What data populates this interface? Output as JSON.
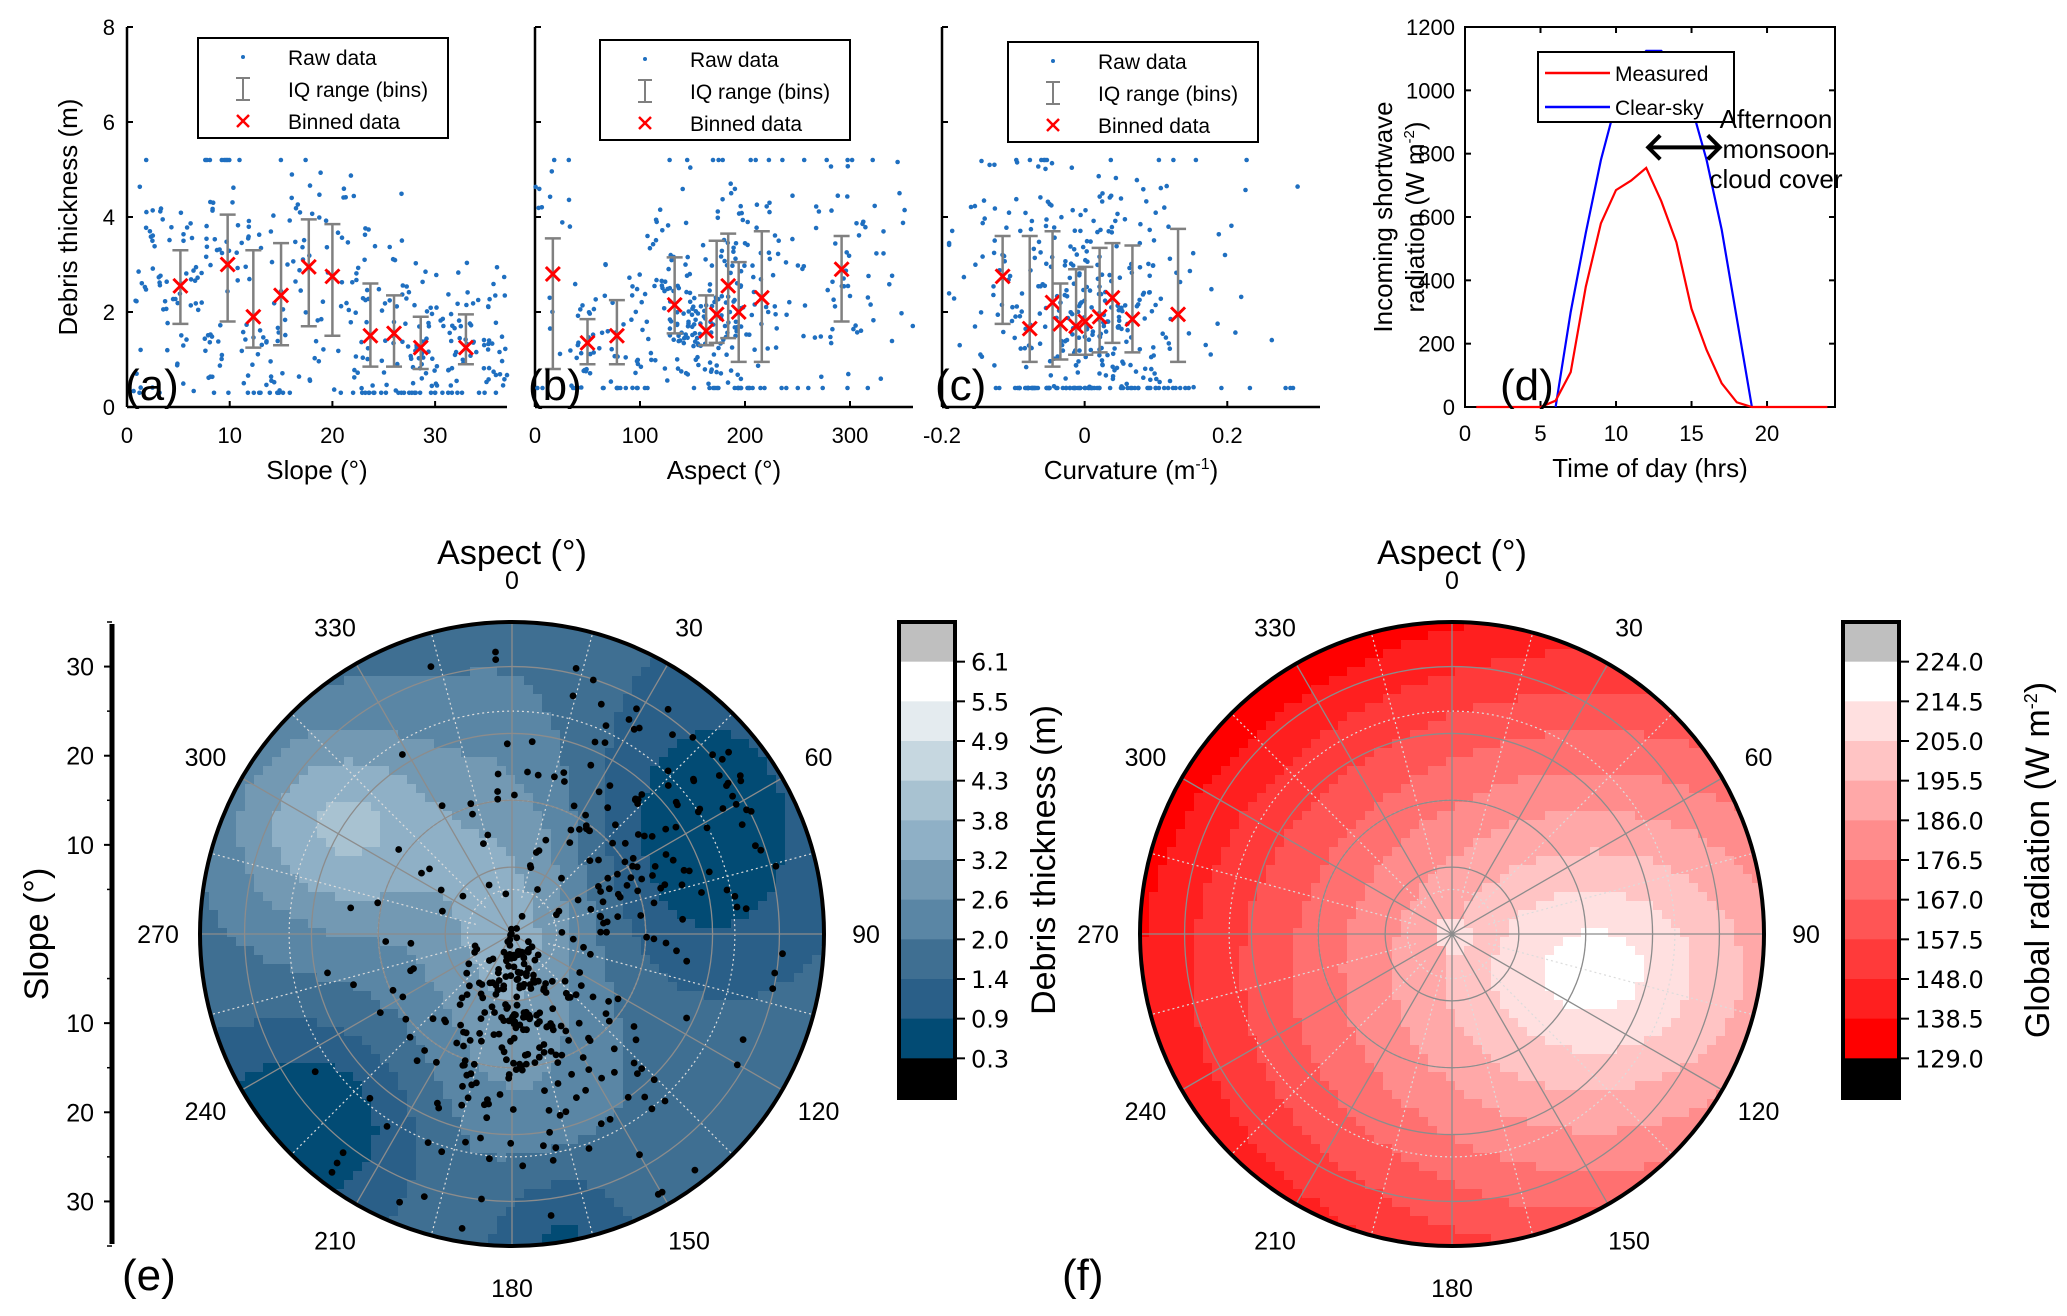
{
  "colors": {
    "raw": "#1f6fc0",
    "binned": "#ff0000",
    "iq": "#808080",
    "measured": "#ff0000",
    "clearsky": "#0000ff"
  },
  "chart_data": [
    {
      "id": "a",
      "type": "scatter",
      "panel_label": "(a)",
      "xlabel": "Slope (°)",
      "ylabel": "Debris thickness (m)",
      "xlim": [
        0,
        37
      ],
      "ylim": [
        0,
        8
      ],
      "xticks": [
        0,
        10,
        20,
        30
      ],
      "yticks": [
        0,
        2,
        4,
        6,
        8
      ],
      "legend": [
        "Raw data",
        "IQ range (bins)",
        "Binned data"
      ],
      "legend_position": "top-center",
      "binned": [
        {
          "x": 5.2,
          "y": 2.55,
          "q1": 1.75,
          "q3": 3.3
        },
        {
          "x": 9.8,
          "y": 3.0,
          "q1": 1.8,
          "q3": 4.05
        },
        {
          "x": 12.3,
          "y": 1.9,
          "q1": 1.25,
          "q3": 3.3
        },
        {
          "x": 15.0,
          "y": 2.35,
          "q1": 1.3,
          "q3": 3.45
        },
        {
          "x": 17.7,
          "y": 2.95,
          "q1": 1.7,
          "q3": 3.95
        },
        {
          "x": 20.0,
          "y": 2.75,
          "q1": 1.5,
          "q3": 3.85
        },
        {
          "x": 23.7,
          "y": 1.5,
          "q1": 0.85,
          "q3": 2.6
        },
        {
          "x": 26.0,
          "y": 1.55,
          "q1": 0.85,
          "q3": 2.35
        },
        {
          "x": 28.6,
          "y": 1.25,
          "q1": 0.8,
          "q3": 1.9
        },
        {
          "x": 33.0,
          "y": 1.25,
          "q1": 0.9,
          "q3": 1.95
        }
      ],
      "raw_count_approx": 400,
      "raw_x_range": [
        0.5,
        37
      ],
      "raw_y_range": [
        0.3,
        5.2
      ]
    },
    {
      "id": "b",
      "type": "scatter",
      "panel_label": "(b)",
      "xlabel": "Aspect (°)",
      "ylabel": "",
      "xlim": [
        0,
        360
      ],
      "ylim": [
        0,
        8
      ],
      "xticks": [
        0,
        100,
        200,
        300
      ],
      "yticks": [
        0,
        2,
        4,
        6,
        8
      ],
      "legend": [
        "Raw data",
        "IQ range (bins)",
        "Binned data"
      ],
      "legend_position": "top-center",
      "binned": [
        {
          "x": 17,
          "y": 2.8,
          "q1": 0.8,
          "q3": 3.55
        },
        {
          "x": 50,
          "y": 1.35,
          "q1": 0.9,
          "q3": 1.85
        },
        {
          "x": 78,
          "y": 1.5,
          "q1": 0.9,
          "q3": 2.25
        },
        {
          "x": 133,
          "y": 2.15,
          "q1": 1.55,
          "q3": 3.15
        },
        {
          "x": 163,
          "y": 1.6,
          "q1": 1.3,
          "q3": 2.35
        },
        {
          "x": 173,
          "y": 1.95,
          "q1": 1.35,
          "q3": 3.5
        },
        {
          "x": 184,
          "y": 2.55,
          "q1": 1.45,
          "q3": 3.65
        },
        {
          "x": 194,
          "y": 2.0,
          "q1": 0.95,
          "q3": 3.05
        },
        {
          "x": 216,
          "y": 2.3,
          "q1": 0.95,
          "q3": 3.7
        },
        {
          "x": 292,
          "y": 2.9,
          "q1": 1.8,
          "q3": 3.6
        }
      ],
      "raw_count_approx": 400,
      "raw_x_range": [
        0,
        360
      ],
      "raw_y_range": [
        0.4,
        5.2
      ]
    },
    {
      "id": "c",
      "type": "scatter",
      "panel_label": "(c)",
      "xlabel": "Curvature (m",
      "xlabel_sup": "-1",
      "xlabel_end": ")",
      "ylabel": "",
      "xlim": [
        -0.2,
        0.33
      ],
      "ylim": [
        0,
        8
      ],
      "xticks": [
        -0.2,
        0,
        0.2
      ],
      "xtick_labels": [
        "-0.2",
        "0",
        "0.2"
      ],
      "yticks": [
        0,
        2,
        4,
        6,
        8
      ],
      "legend": [
        "Raw data",
        "IQ range (bins)",
        "Binned data"
      ],
      "legend_position": "top-center",
      "binned": [
        {
          "x": -0.115,
          "y": 2.75,
          "q1": 1.75,
          "q3": 3.6
        },
        {
          "x": -0.077,
          "y": 1.65,
          "q1": 0.95,
          "q3": 3.6
        },
        {
          "x": -0.045,
          "y": 2.2,
          "q1": 0.85,
          "q3": 3.7
        },
        {
          "x": -0.034,
          "y": 1.75,
          "q1": 1.0,
          "q3": 2.6
        },
        {
          "x": -0.012,
          "y": 1.7,
          "q1": 1.1,
          "q3": 2.9
        },
        {
          "x": 0.001,
          "y": 1.8,
          "q1": 1.1,
          "q3": 2.95
        },
        {
          "x": 0.021,
          "y": 1.9,
          "q1": 1.15,
          "q3": 3.35
        },
        {
          "x": 0.039,
          "y": 2.3,
          "q1": 1.35,
          "q3": 3.45
        },
        {
          "x": 0.067,
          "y": 1.85,
          "q1": 1.15,
          "q3": 3.4
        },
        {
          "x": 0.131,
          "y": 1.95,
          "q1": 0.95,
          "q3": 3.75
        }
      ],
      "raw_count_approx": 400,
      "raw_x_range": [
        -0.19,
        0.33
      ],
      "raw_y_range": [
        0.4,
        5.2
      ]
    },
    {
      "id": "d",
      "type": "line",
      "panel_label": "(d)",
      "xlabel": "Time of day (hrs)",
      "ylabel_line1": "Incoming shortwave",
      "ylabel_line2": "radiation (W m",
      "ylabel_sup": "-2",
      "ylabel_end": ")",
      "xlim": [
        0,
        24.5
      ],
      "ylim": [
        0,
        1200
      ],
      "xticks": [
        0,
        5,
        10,
        15,
        20
      ],
      "yticks": [
        0,
        200,
        400,
        600,
        800,
        1000,
        1200
      ],
      "legend_position": "top-left",
      "annotation": [
        "Afternoon",
        "monsoon",
        "cloud cover"
      ],
      "arrow_x_range": [
        12,
        17
      ],
      "arrow_y": 820,
      "series": [
        {
          "name": "Measured",
          "color": "#ff0000",
          "x": [
            0.75,
            1,
            2,
            3,
            4,
            5,
            6,
            7,
            8,
            9,
            10,
            11,
            12,
            13,
            14,
            15,
            16,
            17,
            18,
            19,
            20,
            21,
            22,
            23,
            24
          ],
          "y": [
            0,
            0,
            0,
            0,
            0,
            0,
            20,
            110,
            380,
            580,
            685,
            715,
            755,
            650,
            520,
            310,
            180,
            75,
            15,
            0,
            0,
            0,
            0,
            0,
            0
          ]
        },
        {
          "name": "Clear-sky",
          "color": "#0000ff",
          "x": [
            6,
            7,
            8,
            9,
            10,
            11,
            12,
            13,
            14,
            15,
            16,
            17,
            18,
            19
          ],
          "y": [
            0,
            300,
            550,
            780,
            960,
            1070,
            1125,
            1125,
            1065,
            950,
            780,
            560,
            280,
            0
          ]
        }
      ]
    },
    {
      "id": "e",
      "type": "heatmap",
      "subtype": "polar-contour",
      "panel_label": "(e)",
      "title": "Aspect (°)",
      "radial_label": "Slope (°)",
      "angle_ticks": [
        0,
        30,
        60,
        90,
        120,
        150,
        180,
        210,
        240,
        270,
        300,
        330
      ],
      "radial_ticks": [
        10,
        20,
        30
      ],
      "radial_max": 35,
      "colorbar_label": "Debris thickness (m)",
      "colorbar_ticks": [
        "6.1",
        "5.5",
        "4.9",
        "4.3",
        "3.8",
        "3.2",
        "2.6",
        "2.0",
        "1.4",
        "0.9",
        "0.3"
      ],
      "colorbar_colors": [
        "#bfbfbf",
        "#ffffff",
        "#e4ebef",
        "#c6d7e0",
        "#a8c2d1",
        "#8fb0c6",
        "#7399b3",
        "#5a86a5",
        "#3f6f92",
        "#2a5f88",
        "#024b74",
        "#000000"
      ],
      "points_overlay": "Raw data locations (black dots)"
    },
    {
      "id": "f",
      "type": "heatmap",
      "subtype": "polar-contour",
      "panel_label": "(f)",
      "title": "Aspect (°)",
      "angle_ticks": [
        0,
        30,
        60,
        90,
        120,
        150,
        180,
        210,
        240,
        270,
        300,
        330
      ],
      "radial_ticks": [
        10,
        20,
        30
      ],
      "radial_max": 35,
      "colorbar_label": "Global radiation (W m",
      "colorbar_label_sup": "-2",
      "colorbar_label_end": ")",
      "colorbar_ticks": [
        "224.0",
        "214.5",
        "205.0",
        "195.5",
        "186.0",
        "176.5",
        "167.0",
        "157.5",
        "148.0",
        "138.5",
        "129.0"
      ],
      "colorbar_colors": [
        "#bfbfbf",
        "#ffffff",
        "#ffe0e0",
        "#ffc4c4",
        "#ffa8a8",
        "#ff8c8c",
        "#ff7070",
        "#ff5555",
        "#ff3a3a",
        "#ff1f1f",
        "#ff0000",
        "#000000"
      ]
    }
  ]
}
